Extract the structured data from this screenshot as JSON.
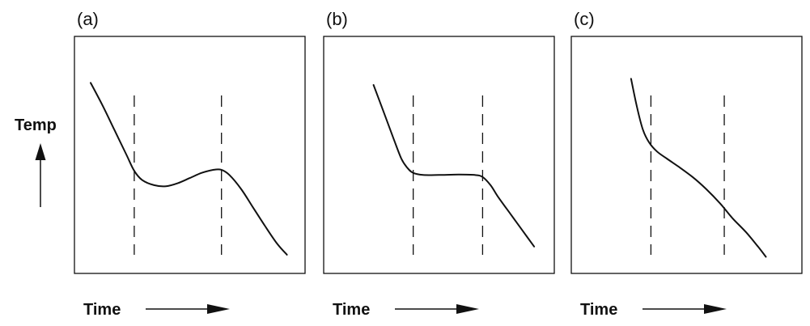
{
  "chart_data": [
    {
      "type": "line",
      "panel_label": "(a)",
      "xlabel": "Time",
      "ylabel": "Temp",
      "xlim": [
        0,
        10
      ],
      "ylim": [
        0,
        10
      ],
      "grid": false,
      "markers_x": [
        2.2,
        6.6
      ],
      "series": [
        {
          "x": [
            0,
            0.6,
            1.2,
            1.8,
            2.2,
            2.6,
            3.2,
            3.8,
            4.4,
            5.0,
            5.6,
            6.2,
            6.6,
            7.0,
            7.6,
            8.2,
            8.8,
            9.4,
            9.9
          ],
          "y": [
            8.6,
            7.5,
            6.3,
            5.1,
            4.3,
            3.85,
            3.6,
            3.55,
            3.7,
            3.95,
            4.2,
            4.35,
            4.35,
            4.1,
            3.4,
            2.5,
            1.6,
            0.75,
            0.2
          ]
        }
      ]
    },
    {
      "type": "line",
      "panel_label": "(b)",
      "xlabel": "Time",
      "ylabel": "",
      "xlim": [
        0,
        10
      ],
      "ylim": [
        0,
        10
      ],
      "grid": false,
      "markers_x": [
        3.7,
        7.2
      ],
      "series": [
        {
          "x": [
            1.7,
            2.2,
            2.7,
            3.1,
            3.4,
            3.7,
            4.2,
            5.0,
            6.0,
            6.8,
            7.2,
            7.6,
            8.0,
            8.6,
            9.2,
            9.8
          ],
          "y": [
            8.5,
            7.2,
            5.9,
            4.9,
            4.45,
            4.2,
            4.1,
            4.1,
            4.12,
            4.1,
            4.0,
            3.6,
            3.0,
            2.2,
            1.4,
            0.6
          ]
        }
      ]
    },
    {
      "type": "line",
      "panel_label": "(c)",
      "xlabel": "Time",
      "ylabel": "",
      "xlim": [
        0,
        10
      ],
      "ylim": [
        0,
        10
      ],
      "grid": false,
      "markers_x": [
        3.2,
        6.9
      ],
      "series": [
        {
          "x": [
            2.2,
            2.5,
            2.8,
            3.1,
            3.5,
            4.0,
            4.6,
            5.3,
            6.0,
            6.7,
            7.3,
            8.0,
            8.6,
            9.0
          ],
          "y": [
            8.8,
            7.4,
            6.3,
            5.7,
            5.25,
            4.9,
            4.5,
            4.0,
            3.4,
            2.7,
            2.0,
            1.3,
            0.6,
            0.1
          ]
        }
      ]
    }
  ]
}
